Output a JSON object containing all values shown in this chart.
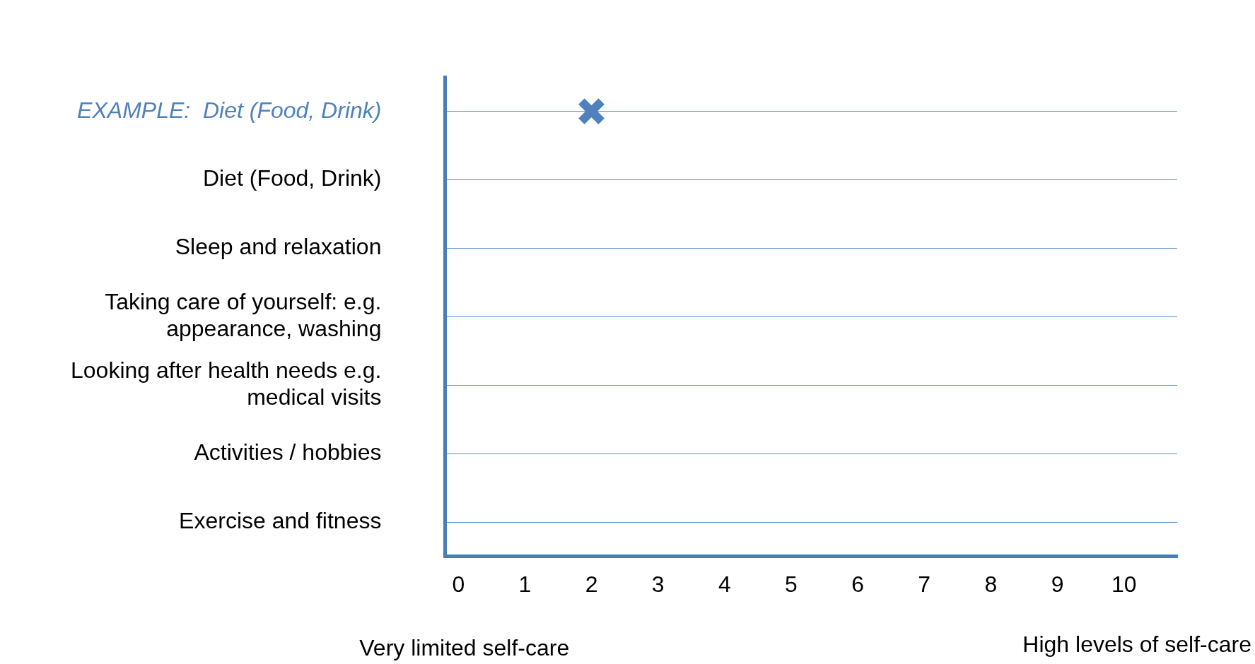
{
  "chart_data": {
    "type": "scatter",
    "orientation": "horizontal",
    "categories": [
      "EXAMPLE:  Diet (Food, Drink)",
      "Diet (Food, Drink)",
      "Sleep and relaxation",
      "Taking care of yourself: e.g. appearance, washing",
      "Looking after health needs e.g. medical visits",
      "Activities / hobbies",
      "Exercise and fitness"
    ],
    "series": [
      {
        "color": "#4f81bd",
        "values": [
          2,
          null,
          null,
          null,
          null,
          null,
          null
        ]
      }
    ],
    "marker": "cross",
    "xlim": [
      -0.2,
      10.8
    ],
    "xticks": [
      0,
      1,
      2,
      3,
      4,
      5,
      6,
      7,
      8,
      9,
      10
    ],
    "grid": "y",
    "legend": false,
    "annotations": [
      "Very limited self-care",
      "High levels of self-care"
    ]
  }
}
